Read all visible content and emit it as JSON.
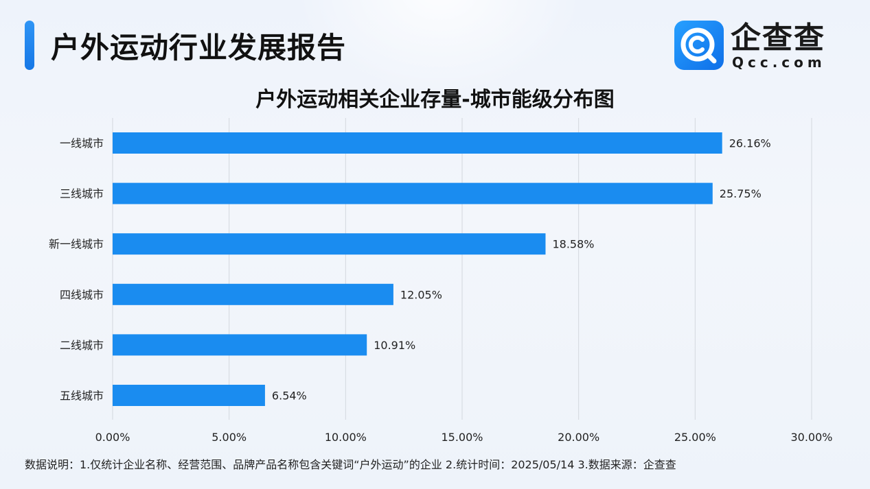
{
  "header": {
    "title": "户外运动行业发展报告",
    "logo_name": "企查查",
    "logo_domain": "Qcc.com"
  },
  "chart_data": {
    "type": "bar",
    "orientation": "horizontal",
    "title": "户外运动相关企业存量-城市能级分布图",
    "categories": [
      "一线城市",
      "三线城市",
      "新一线城市",
      "四线城市",
      "二线城市",
      "五线城市"
    ],
    "values": [
      26.16,
      25.75,
      18.58,
      12.05,
      10.91,
      6.54
    ],
    "value_labels": [
      "26.16%",
      "25.75%",
      "18.58%",
      "12.05%",
      "10.91%",
      "6.54%"
    ],
    "xlim": [
      0,
      30
    ],
    "x_ticks": [
      0,
      5,
      10,
      15,
      20,
      25,
      30
    ],
    "x_tick_labels": [
      "0.00%",
      "5.00%",
      "10.00%",
      "15.00%",
      "20.00%",
      "25.00%",
      "30.00%"
    ],
    "grid": "vertical",
    "bar_color": "#1a8cf0"
  },
  "footnote": "数据说明：1.仅统计企业名称、经营范围、品牌产品名称包含关键词“户外运动”的企业   2.统计时间：2025/05/14    3.数据来源：企查查"
}
